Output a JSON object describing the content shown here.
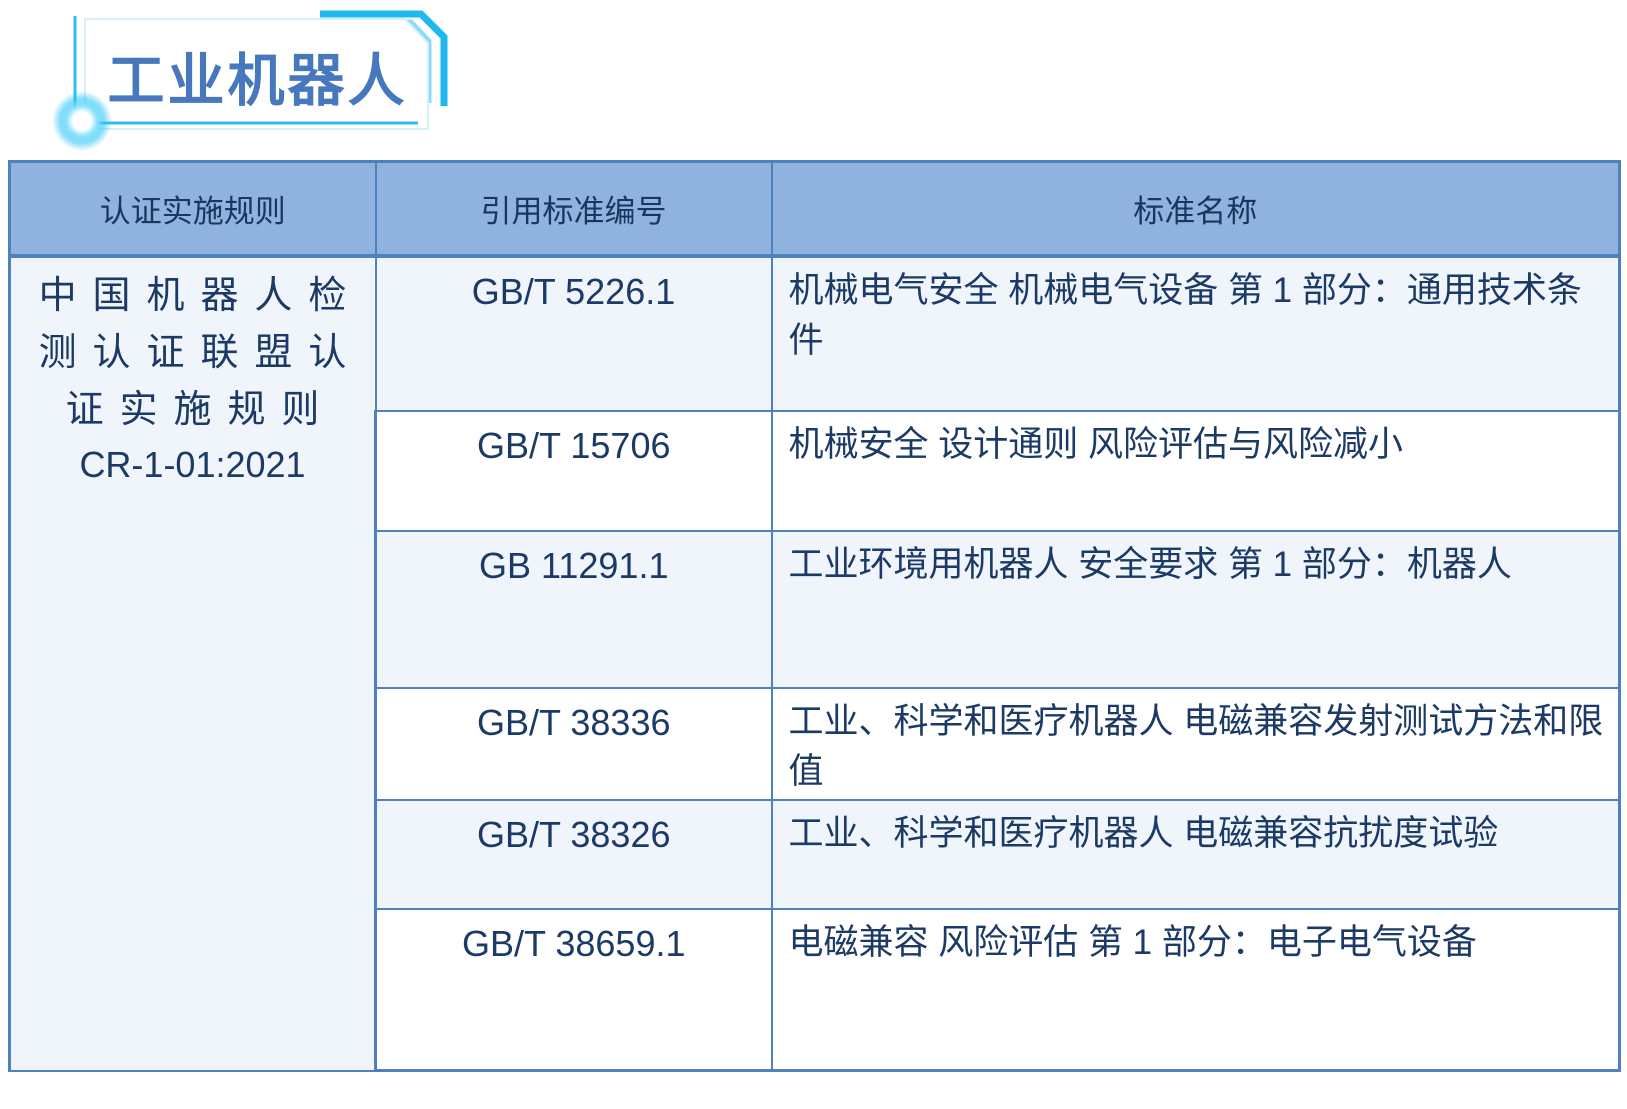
{
  "title": "工业机器人",
  "colors": {
    "title_color": "#4778BE",
    "frame_cyan": "#1FB9F0",
    "frame_cyan_light": "#8ADCF8",
    "frame_cyan_pale": "#CFEDFB",
    "header_bg": "#8FB2DF",
    "header_text": "#17375E",
    "border": "#4F81BD",
    "shaded_row_bg": "#F0F4FB",
    "cell_text": "#1B3A66"
  },
  "table": {
    "headers": [
      "认证实施规则",
      "引用标准编号",
      "标准名称"
    ],
    "rule_cell": {
      "lines": "中国机器人检\n测认证联盟认\n证实施规则",
      "code": "CR-1-01:2021"
    },
    "rows": [
      {
        "std_no": "GB/T 5226.1",
        "std_name": "机械电气安全 机械电气设备 第 1 部分：通用技术条件"
      },
      {
        "std_no": "GB/T 15706",
        "std_name": "机械安全 设计通则 风险评估与风险减小"
      },
      {
        "std_no": "GB 11291.1",
        "std_name": "工业环境用机器人 安全要求 第 1 部分：机器人"
      },
      {
        "std_no": "GB/T 38336",
        "std_name": "工业、科学和医疗机器人 电磁兼容发射测试方法和限值"
      },
      {
        "std_no": "GB/T 38326",
        "std_name": "工业、科学和医疗机器人 电磁兼容抗扰度试验"
      },
      {
        "std_no": "GB/T 38659.1",
        "std_name": "电磁兼容 风险评估 第 1 部分：电子电气设备"
      }
    ]
  }
}
